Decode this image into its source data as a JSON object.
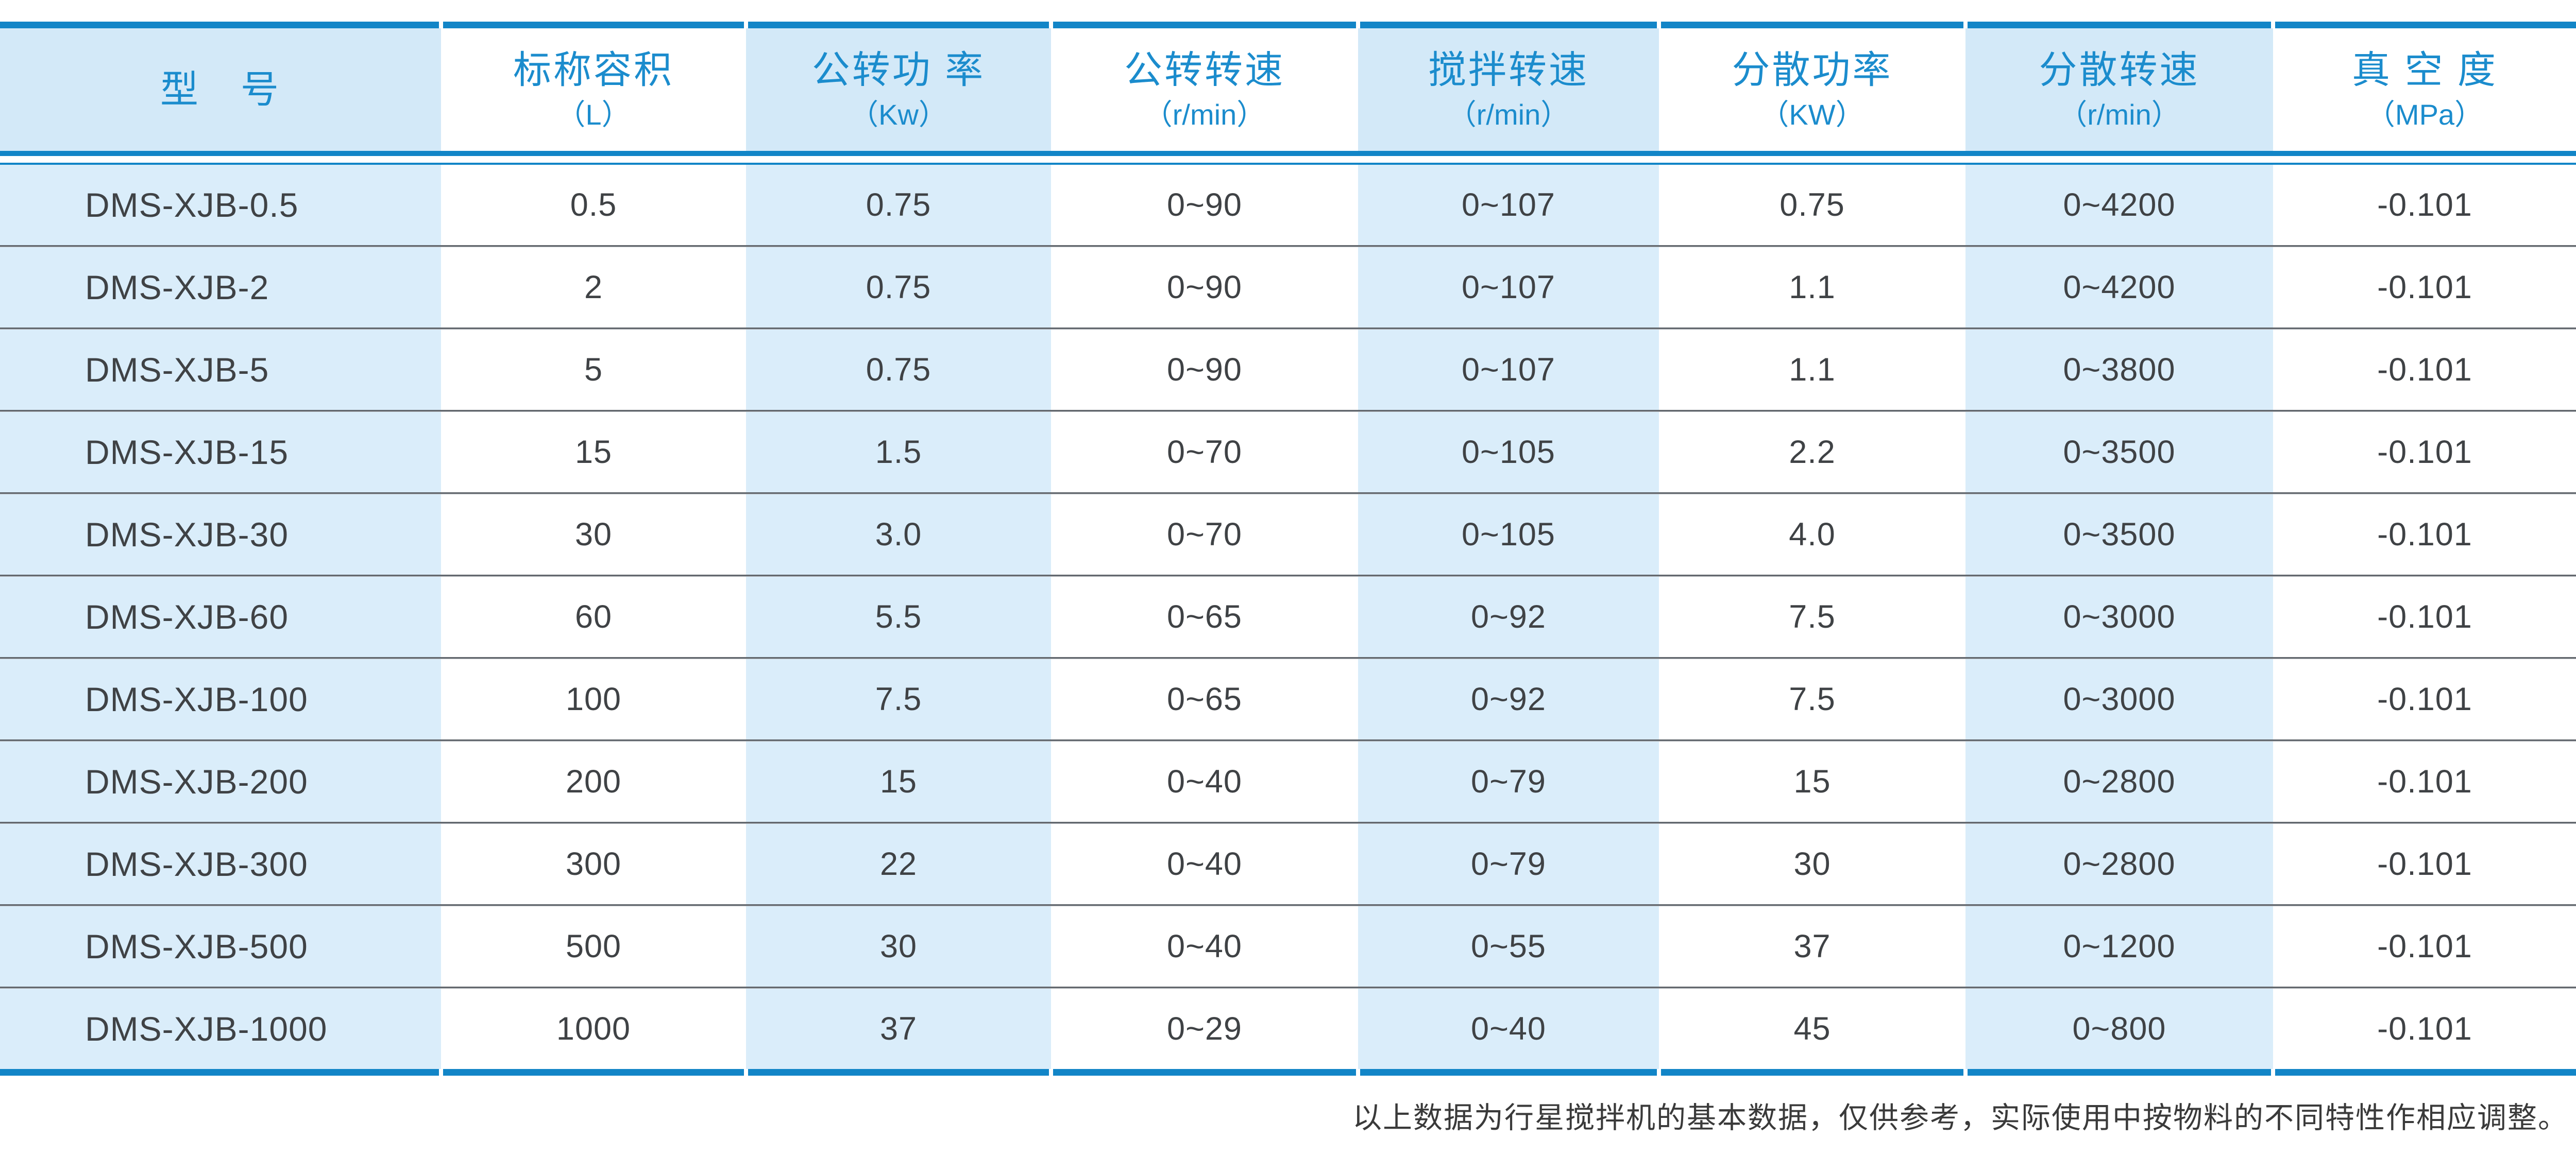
{
  "table": {
    "columns": [
      {
        "key": "model",
        "title": "型　号",
        "unit": ""
      },
      {
        "key": "nominal-volume",
        "title": "标称容积",
        "unit": "（L）"
      },
      {
        "key": "revolution-power",
        "title": "公转功 率",
        "unit": "（Kw）"
      },
      {
        "key": "revolution-speed",
        "title": "公转转速",
        "unit": "（r/min）"
      },
      {
        "key": "stirring-speed",
        "title": "搅拌转速",
        "unit": "（r/min）"
      },
      {
        "key": "dispersing-power",
        "title": "分散功率",
        "unit": "（KW）"
      },
      {
        "key": "dispersing-speed",
        "title": "分散转速",
        "unit": "（r/min）"
      },
      {
        "key": "vacuum-degree",
        "title": "真 空 度",
        "unit": "（MPa）"
      }
    ],
    "rows": [
      [
        "DMS-XJB-0.5",
        "0.5",
        "0.75",
        "0~90",
        "0~107",
        "0.75",
        "0~4200",
        "-0.101"
      ],
      [
        "DMS-XJB-2",
        "2",
        "0.75",
        "0~90",
        "0~107",
        "1.1",
        "0~4200",
        "-0.101"
      ],
      [
        "DMS-XJB-5",
        "5",
        "0.75",
        "0~90",
        "0~107",
        "1.1",
        "0~3800",
        "-0.101"
      ],
      [
        "DMS-XJB-15",
        "15",
        "1.5",
        "0~70",
        "0~105",
        "2.2",
        "0~3500",
        "-0.101"
      ],
      [
        "DMS-XJB-30",
        "30",
        "3.0",
        "0~70",
        "0~105",
        "4.0",
        "0~3500",
        "-0.101"
      ],
      [
        "DMS-XJB-60",
        "60",
        "5.5",
        "0~65",
        "0~92",
        "7.5",
        "0~3000",
        "-0.101"
      ],
      [
        "DMS-XJB-100",
        "100",
        "7.5",
        "0~65",
        "0~92",
        "7.5",
        "0~3000",
        "-0.101"
      ],
      [
        "DMS-XJB-200",
        "200",
        "15",
        "0~40",
        "0~79",
        "15",
        "0~2800",
        "-0.101"
      ],
      [
        "DMS-XJB-300",
        "300",
        "22",
        "0~40",
        "0~79",
        "30",
        "0~2800",
        "-0.101"
      ],
      [
        "DMS-XJB-500",
        "500",
        "30",
        "0~40",
        "0~55",
        "37",
        "0~1200",
        "-0.101"
      ],
      [
        "DMS-XJB-1000",
        "1000",
        "37",
        "0~29",
        "0~40",
        "45",
        "0~800",
        "-0.101"
      ]
    ]
  },
  "footer": {
    "note": "以上数据为行星搅拌机的基本数据，仅供参考，实际使用中按物料的不同特性作相应调整。"
  },
  "colors": {
    "accent_blue": "#1285c7",
    "header_text_blue": "#1b8ccd",
    "header_cell_tint": "#d3e9f8",
    "body_cell_tint": "#daedfa",
    "body_text": "#3f4245",
    "separator_gray": "#72777d",
    "footnote_text": "#3a3a3a",
    "background": "#ffffff"
  }
}
